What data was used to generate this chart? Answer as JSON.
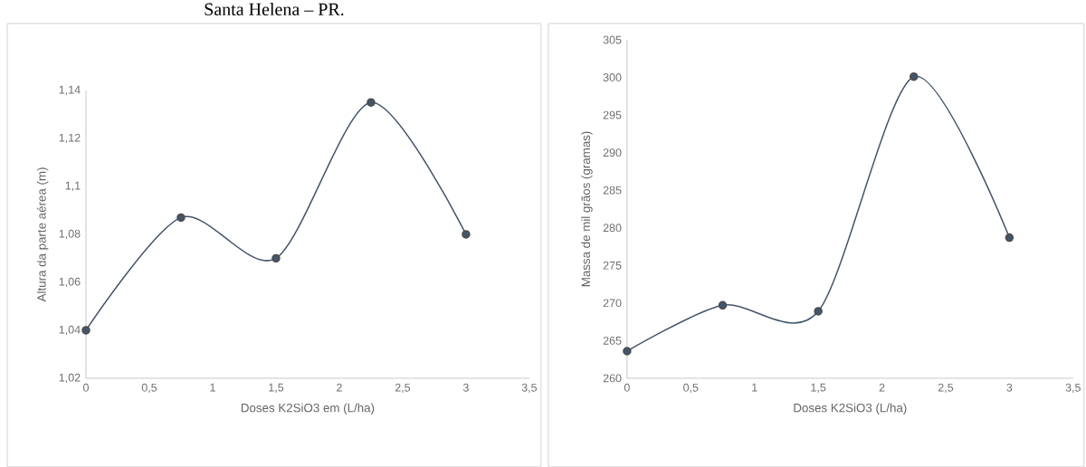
{
  "chart_data": [
    {
      "type": "line",
      "annotations": [
        "Santa Helena – PR."
      ],
      "xlabel": "Doses K2SiO3 em (L/ha)",
      "ylabel": "Altura da parte aérea (m)",
      "x": [
        0,
        0.75,
        1.5,
        2.25,
        3
      ],
      "series": [
        {
          "color": "#44546a",
          "values": [
            1.04,
            1.087,
            1.07,
            1.135,
            1.08
          ]
        }
      ],
      "xlim": [
        0,
        3.5
      ],
      "xticks": [
        {
          "value": 0,
          "label": "0"
        },
        {
          "value": 0.5,
          "label": "0,5"
        },
        {
          "value": 1,
          "label": "1"
        },
        {
          "value": 1.5,
          "label": "1,5"
        },
        {
          "value": 2,
          "label": "2"
        },
        {
          "value": 2.5,
          "label": "2,5"
        },
        {
          "value": 3,
          "label": "3"
        },
        {
          "value": 3.5,
          "label": "3,5"
        }
      ],
      "ylim": [
        1.02,
        1.14
      ],
      "yticks": [
        {
          "value": 1.02,
          "label": "1,02"
        },
        {
          "value": 1.04,
          "label": "1,04"
        },
        {
          "value": 1.06,
          "label": "1,06"
        },
        {
          "value": 1.08,
          "label": "1,08"
        },
        {
          "value": 1.1,
          "label": "1,1"
        },
        {
          "value": 1.12,
          "label": "1,12"
        },
        {
          "value": 1.14,
          "label": "1,14"
        }
      ],
      "marker": "circle",
      "line_style": "solid"
    },
    {
      "type": "line",
      "xlabel": "Doses K2SiO3 (L/ha)",
      "ylabel": "Massa de mil grãos (gramas)",
      "x": [
        0,
        0.75,
        1.5,
        2.25,
        3
      ],
      "series": [
        {
          "color": "#44546a",
          "values": [
            263.6,
            269.7,
            268.9,
            300.1,
            278.7
          ]
        }
      ],
      "xlim": [
        0,
        3.5
      ],
      "xticks": [
        {
          "value": 0,
          "label": "0"
        },
        {
          "value": 0.5,
          "label": "0,5"
        },
        {
          "value": 1,
          "label": "1"
        },
        {
          "value": 1.5,
          "label": "1,5"
        },
        {
          "value": 2,
          "label": "2"
        },
        {
          "value": 2.5,
          "label": "2,5"
        },
        {
          "value": 3,
          "label": "3"
        },
        {
          "value": 3.5,
          "label": "3,5"
        }
      ],
      "ylim": [
        260,
        305
      ],
      "yticks": [
        260,
        265,
        270,
        275,
        280,
        285,
        290,
        295,
        300,
        305
      ],
      "marker": "circle",
      "line_style": "solid"
    }
  ]
}
